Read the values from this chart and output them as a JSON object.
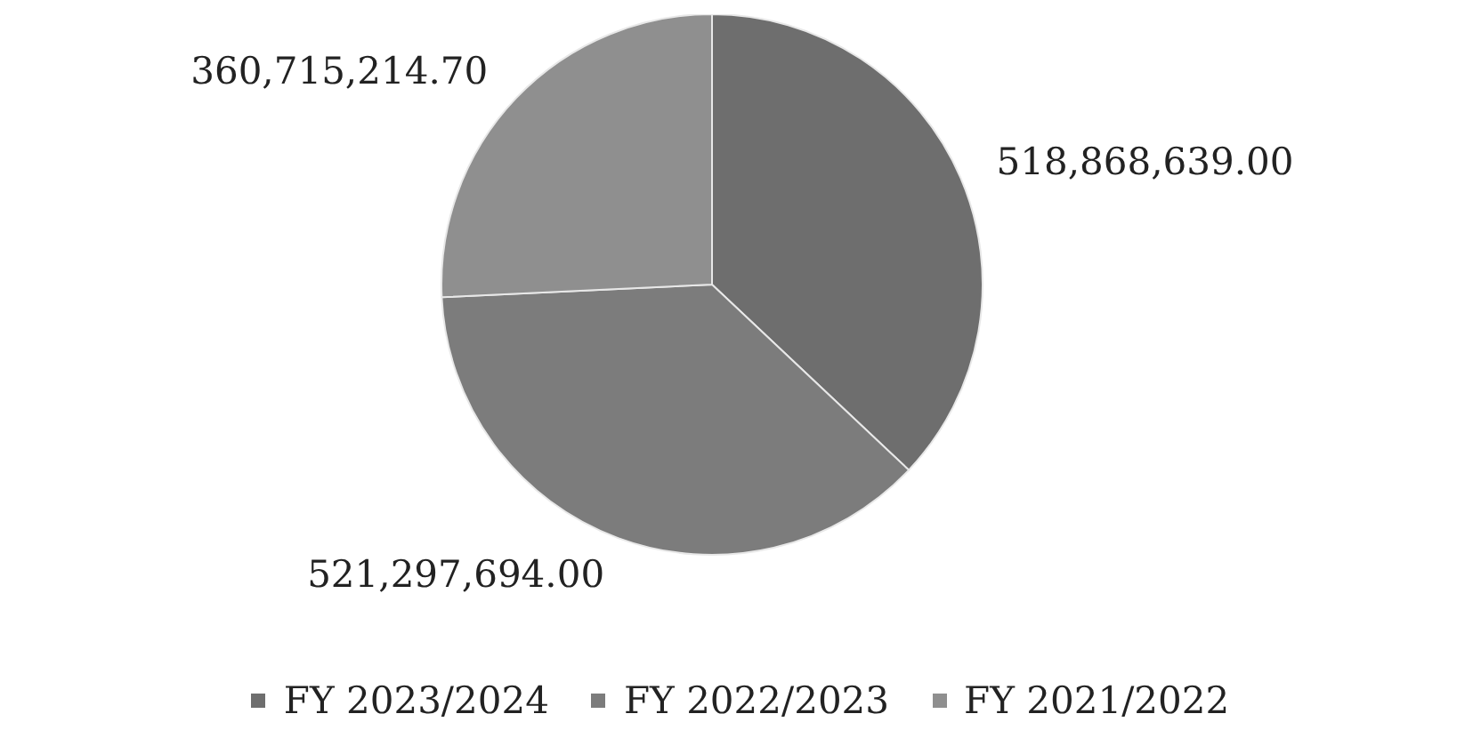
{
  "chart_data": {
    "type": "pie",
    "categories": [
      "FY 2023/2024",
      "FY 2022/2023",
      "FY 2021/2022"
    ],
    "values": [
      518868639.0,
      521297694.0,
      360715214.7
    ],
    "colors": [
      "#6e6e6e",
      "#7c7c7c",
      "#8f8f8f"
    ],
    "value_labels": [
      "518,868,639.00",
      "521,297,694.00",
      "360,715,214.70"
    ],
    "legend": "bottom"
  }
}
